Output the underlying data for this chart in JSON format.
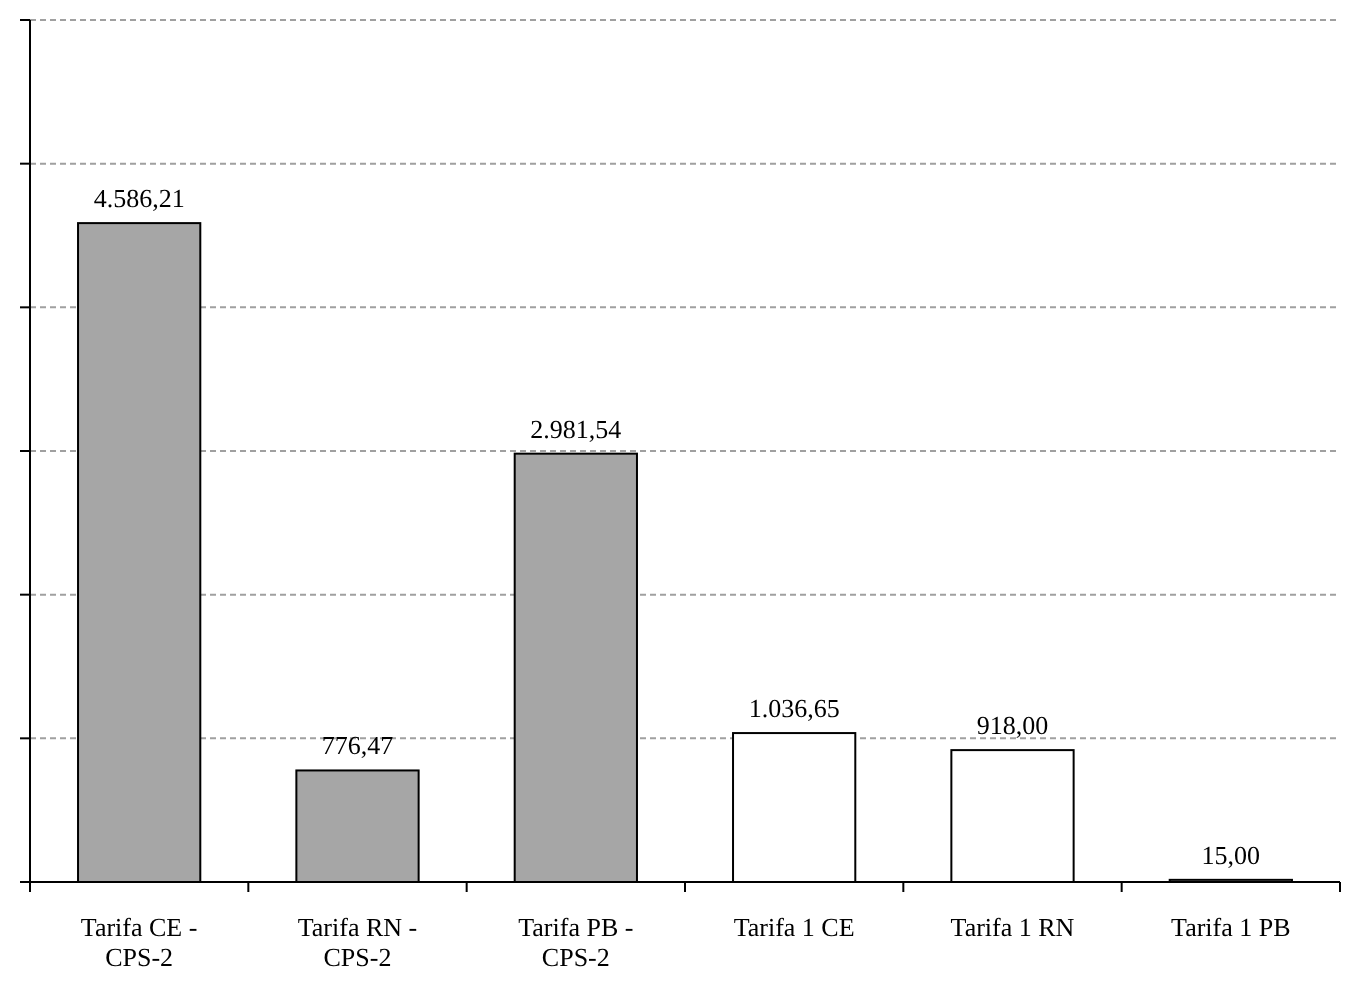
{
  "chart_data": {
    "type": "bar",
    "categories": [
      "Tarifa CE - CPS-2",
      "Tarifa RN - CPS-2",
      "Tarifa PB - CPS-2",
      "Tarifa 1 CE",
      "Tarifa 1 RN",
      "Tarifa 1 PB"
    ],
    "values": [
      4586.21,
      776.47,
      2981.54,
      1036.65,
      918.0,
      15.0
    ],
    "value_labels": [
      "4.586,21",
      "776,47",
      "2.981,54",
      "1.036,65",
      "918,00",
      "15,00"
    ],
    "colors": [
      "#a6a6a6",
      "#a6a6a6",
      "#a6a6a6",
      "#ffffff",
      "#ffffff",
      "#ffffff"
    ],
    "ylim": [
      0,
      6000
    ],
    "yticks": [
      {
        "value": 0,
        "label": null
      },
      {
        "value": 1000,
        "label": null
      },
      {
        "value": 2000,
        "label": null
      },
      {
        "value": 3000,
        "label": null
      },
      {
        "value": 4000,
        "label": null
      },
      {
        "value": 5000,
        "label": null
      },
      {
        "value": 6000,
        "label": null
      }
    ],
    "tick_labels": "x",
    "grid": "y"
  }
}
